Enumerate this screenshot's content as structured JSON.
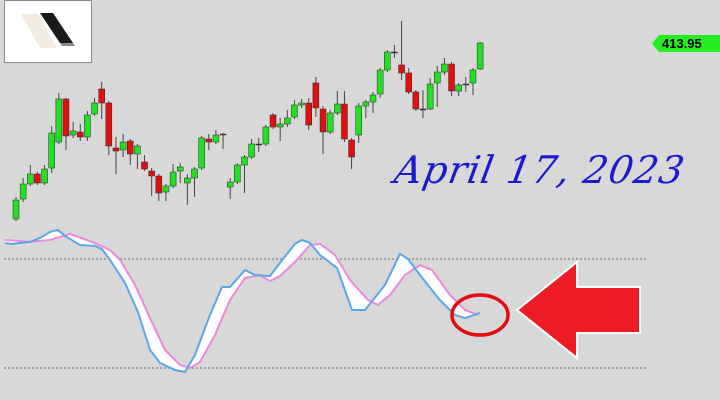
{
  "chart_data": {
    "type": "candlestick",
    "last_price_label": "413.95",
    "annotation": "April 17, 2023",
    "candles": [
      [
        396.35,
        398.55,
        396.15,
        398.25
      ],
      [
        398.35,
        400.45,
        398.05,
        399.85
      ],
      [
        399.85,
        401.75,
        399.65,
        400.85
      ],
      [
        400.85,
        401.05,
        399.75,
        399.95
      ],
      [
        399.95,
        401.75,
        399.75,
        401.35
      ],
      [
        401.45,
        405.65,
        400.95,
        404.95
      ],
      [
        404.05,
        408.95,
        403.85,
        408.35
      ],
      [
        408.35,
        408.45,
        403.25,
        404.65
      ],
      [
        404.75,
        406.05,
        404.45,
        405.15
      ],
      [
        405.05,
        405.85,
        404.15,
        404.55
      ],
      [
        404.55,
        407.15,
        404.15,
        406.75
      ],
      [
        406.85,
        408.45,
        406.65,
        407.95
      ],
      [
        409.35,
        410.05,
        406.35,
        407.95
      ],
      [
        407.95,
        408.15,
        402.75,
        403.65
      ],
      [
        403.45,
        404.55,
        400.85,
        403.15
      ],
      [
        403.25,
        404.85,
        402.55,
        404.05
      ],
      [
        404.15,
        404.35,
        401.75,
        402.85
      ],
      [
        402.85,
        403.85,
        401.35,
        403.65
      ],
      [
        402.05,
        402.75,
        401.15,
        401.35
      ],
      [
        401.15,
        401.45,
        398.65,
        400.65
      ],
      [
        400.65,
        400.85,
        398.15,
        398.95
      ],
      [
        399.05,
        399.85,
        398.15,
        399.65
      ],
      [
        399.65,
        401.85,
        399.45,
        401.05
      ],
      [
        401.15,
        401.95,
        399.95,
        401.55
      ],
      [
        399.95,
        400.85,
        397.75,
        400.45
      ],
      [
        400.45,
        401.55,
        398.55,
        401.35
      ],
      [
        401.45,
        404.65,
        401.25,
        404.45
      ],
      [
        404.35,
        404.85,
        403.25,
        404.05
      ],
      [
        404.05,
        405.25,
        403.85,
        404.75
      ],
      [
        404.85,
        404.95,
        403.35,
        404.75
      ],
      [
        399.55,
        400.45,
        398.35,
        400.05
      ],
      [
        400.05,
        401.95,
        399.85,
        401.75
      ],
      [
        401.75,
        402.75,
        398.95,
        402.55
      ],
      [
        402.55,
        404.35,
        402.35,
        403.85
      ],
      [
        403.85,
        404.45,
        403.05,
        403.85
      ],
      [
        403.85,
        405.75,
        403.65,
        405.55
      ],
      [
        406.75,
        406.95,
        405.35,
        405.55
      ],
      [
        405.55,
        406.45,
        404.15,
        405.85
      ],
      [
        405.85,
        407.25,
        405.55,
        406.45
      ],
      [
        406.55,
        408.25,
        406.35,
        407.75
      ],
      [
        407.75,
        408.35,
        407.45,
        407.95
      ],
      [
        407.95,
        408.45,
        405.25,
        405.75
      ],
      [
        409.95,
        410.55,
        406.55,
        407.45
      ],
      [
        407.35,
        407.65,
        402.85,
        405.05
      ],
      [
        405.05,
        407.25,
        404.85,
        406.95
      ],
      [
        406.95,
        409.15,
        406.75,
        407.85
      ],
      [
        407.85,
        409.15,
        404.05,
        404.35
      ],
      [
        404.25,
        404.45,
        401.35,
        402.55
      ],
      [
        404.75,
        407.95,
        403.95,
        407.65
      ],
      [
        407.65,
        408.25,
        406.45,
        408.05
      ],
      [
        408.05,
        409.05,
        406.95,
        408.75
      ],
      [
        408.85,
        411.45,
        408.45,
        411.25
      ],
      [
        411.25,
        413.25,
        411.05,
        413.05
      ],
      [
        413.05,
        413.75,
        412.45,
        413.05
      ],
      [
        411.75,
        416.15,
        410.25,
        410.95
      ],
      [
        410.95,
        411.45,
        408.85,
        409.05
      ],
      [
        409.05,
        409.25,
        407.15,
        407.35
      ],
      [
        407.35,
        409.25,
        406.45,
        407.35
      ],
      [
        407.35,
        410.45,
        407.25,
        409.85
      ],
      [
        409.95,
        411.65,
        407.55,
        411.05
      ],
      [
        411.05,
        412.45,
        410.75,
        411.85
      ],
      [
        411.85,
        412.05,
        408.65,
        409.15
      ],
      [
        409.15,
        409.95,
        408.65,
        409.75
      ],
      [
        409.85,
        410.55,
        409.05,
        409.85
      ],
      [
        409.95,
        411.45,
        408.75,
        411.25
      ],
      [
        411.35,
        414.05,
        411.25,
        413.95
      ]
    ],
    "candle_fields": [
      "open",
      "high",
      "low",
      "close"
    ],
    "oscillator": {
      "levels": [
        80,
        20
      ],
      "fast": [
        [
          -1.54,
          88.8
        ],
        [
          -0.56,
          88.3
        ],
        [
          1.96,
          89.4
        ],
        [
          3.36,
          91.6
        ],
        [
          4.76,
          94.9
        ],
        [
          5.88,
          96.0
        ],
        [
          6.86,
          92.7
        ],
        [
          8.96,
          87.7
        ],
        [
          11.06,
          87.2
        ],
        [
          12.04,
          85.5
        ],
        [
          13.17,
          79.5
        ],
        [
          15.27,
          66.8
        ],
        [
          17.09,
          50.8
        ],
        [
          18.77,
          29.9
        ],
        [
          20.17,
          22.8
        ],
        [
          22.27,
          18.9
        ],
        [
          23.67,
          17.8
        ],
        [
          25.07,
          27.2
        ],
        [
          27.17,
          49.2
        ],
        [
          28.85,
          64.6
        ],
        [
          29.97,
          64.6
        ],
        [
          32.07,
          73.9
        ],
        [
          33.47,
          71.2
        ],
        [
          35.57,
          70.6
        ],
        [
          37.39,
          80.0
        ],
        [
          39.08,
          88.3
        ],
        [
          40.06,
          90.5
        ],
        [
          41.18,
          88.8
        ],
        [
          42.58,
          82.2
        ],
        [
          44.96,
          75.1
        ],
        [
          47.06,
          51.9
        ],
        [
          48.88,
          51.9
        ],
        [
          51.68,
          65.7
        ],
        [
          53.78,
          82.8
        ],
        [
          54.9,
          80.0
        ],
        [
          56.58,
          71.2
        ],
        [
          59.38,
          57.4
        ],
        [
          61.48,
          49.2
        ],
        [
          62.89,
          47.5
        ],
        [
          64.99,
          50.3
        ]
      ],
      "slow": [
        [
          -1.54,
          90.5
        ],
        [
          1.96,
          89.4
        ],
        [
          4.76,
          90.5
        ],
        [
          7.56,
          93.8
        ],
        [
          10.36,
          89.9
        ],
        [
          13.17,
          85.0
        ],
        [
          14.57,
          79.5
        ],
        [
          16.67,
          65.7
        ],
        [
          18.77,
          47.5
        ],
        [
          20.87,
          29.9
        ],
        [
          22.97,
          21.7
        ],
        [
          24.37,
          20.0
        ],
        [
          25.77,
          23.3
        ],
        [
          27.87,
          38.2
        ],
        [
          29.97,
          57.4
        ],
        [
          32.07,
          69.5
        ],
        [
          34.17,
          71.2
        ],
        [
          35.57,
          67.9
        ],
        [
          36.97,
          70.6
        ],
        [
          39.08,
          78.4
        ],
        [
          41.18,
          87.7
        ],
        [
          42.58,
          88.3
        ],
        [
          44.68,
          82.2
        ],
        [
          46.78,
          68.4
        ],
        [
          49.3,
          57.4
        ],
        [
          50.7,
          54.7
        ],
        [
          52.38,
          60.2
        ],
        [
          54.48,
          71.2
        ],
        [
          56.58,
          76.7
        ],
        [
          58.26,
          73.9
        ],
        [
          60.78,
          60.2
        ],
        [
          62.89,
          51.9
        ],
        [
          64.71,
          49.2
        ]
      ]
    },
    "colors": {
      "up": "#22e022",
      "down": "#e01010",
      "fast": "#5aa8e6",
      "slow": "#ee88dd",
      "band_fill": "#ffffff",
      "price_tag": "#22ee22",
      "annotation": "#1a1ad0",
      "arrow": "#ee1c24"
    }
  }
}
